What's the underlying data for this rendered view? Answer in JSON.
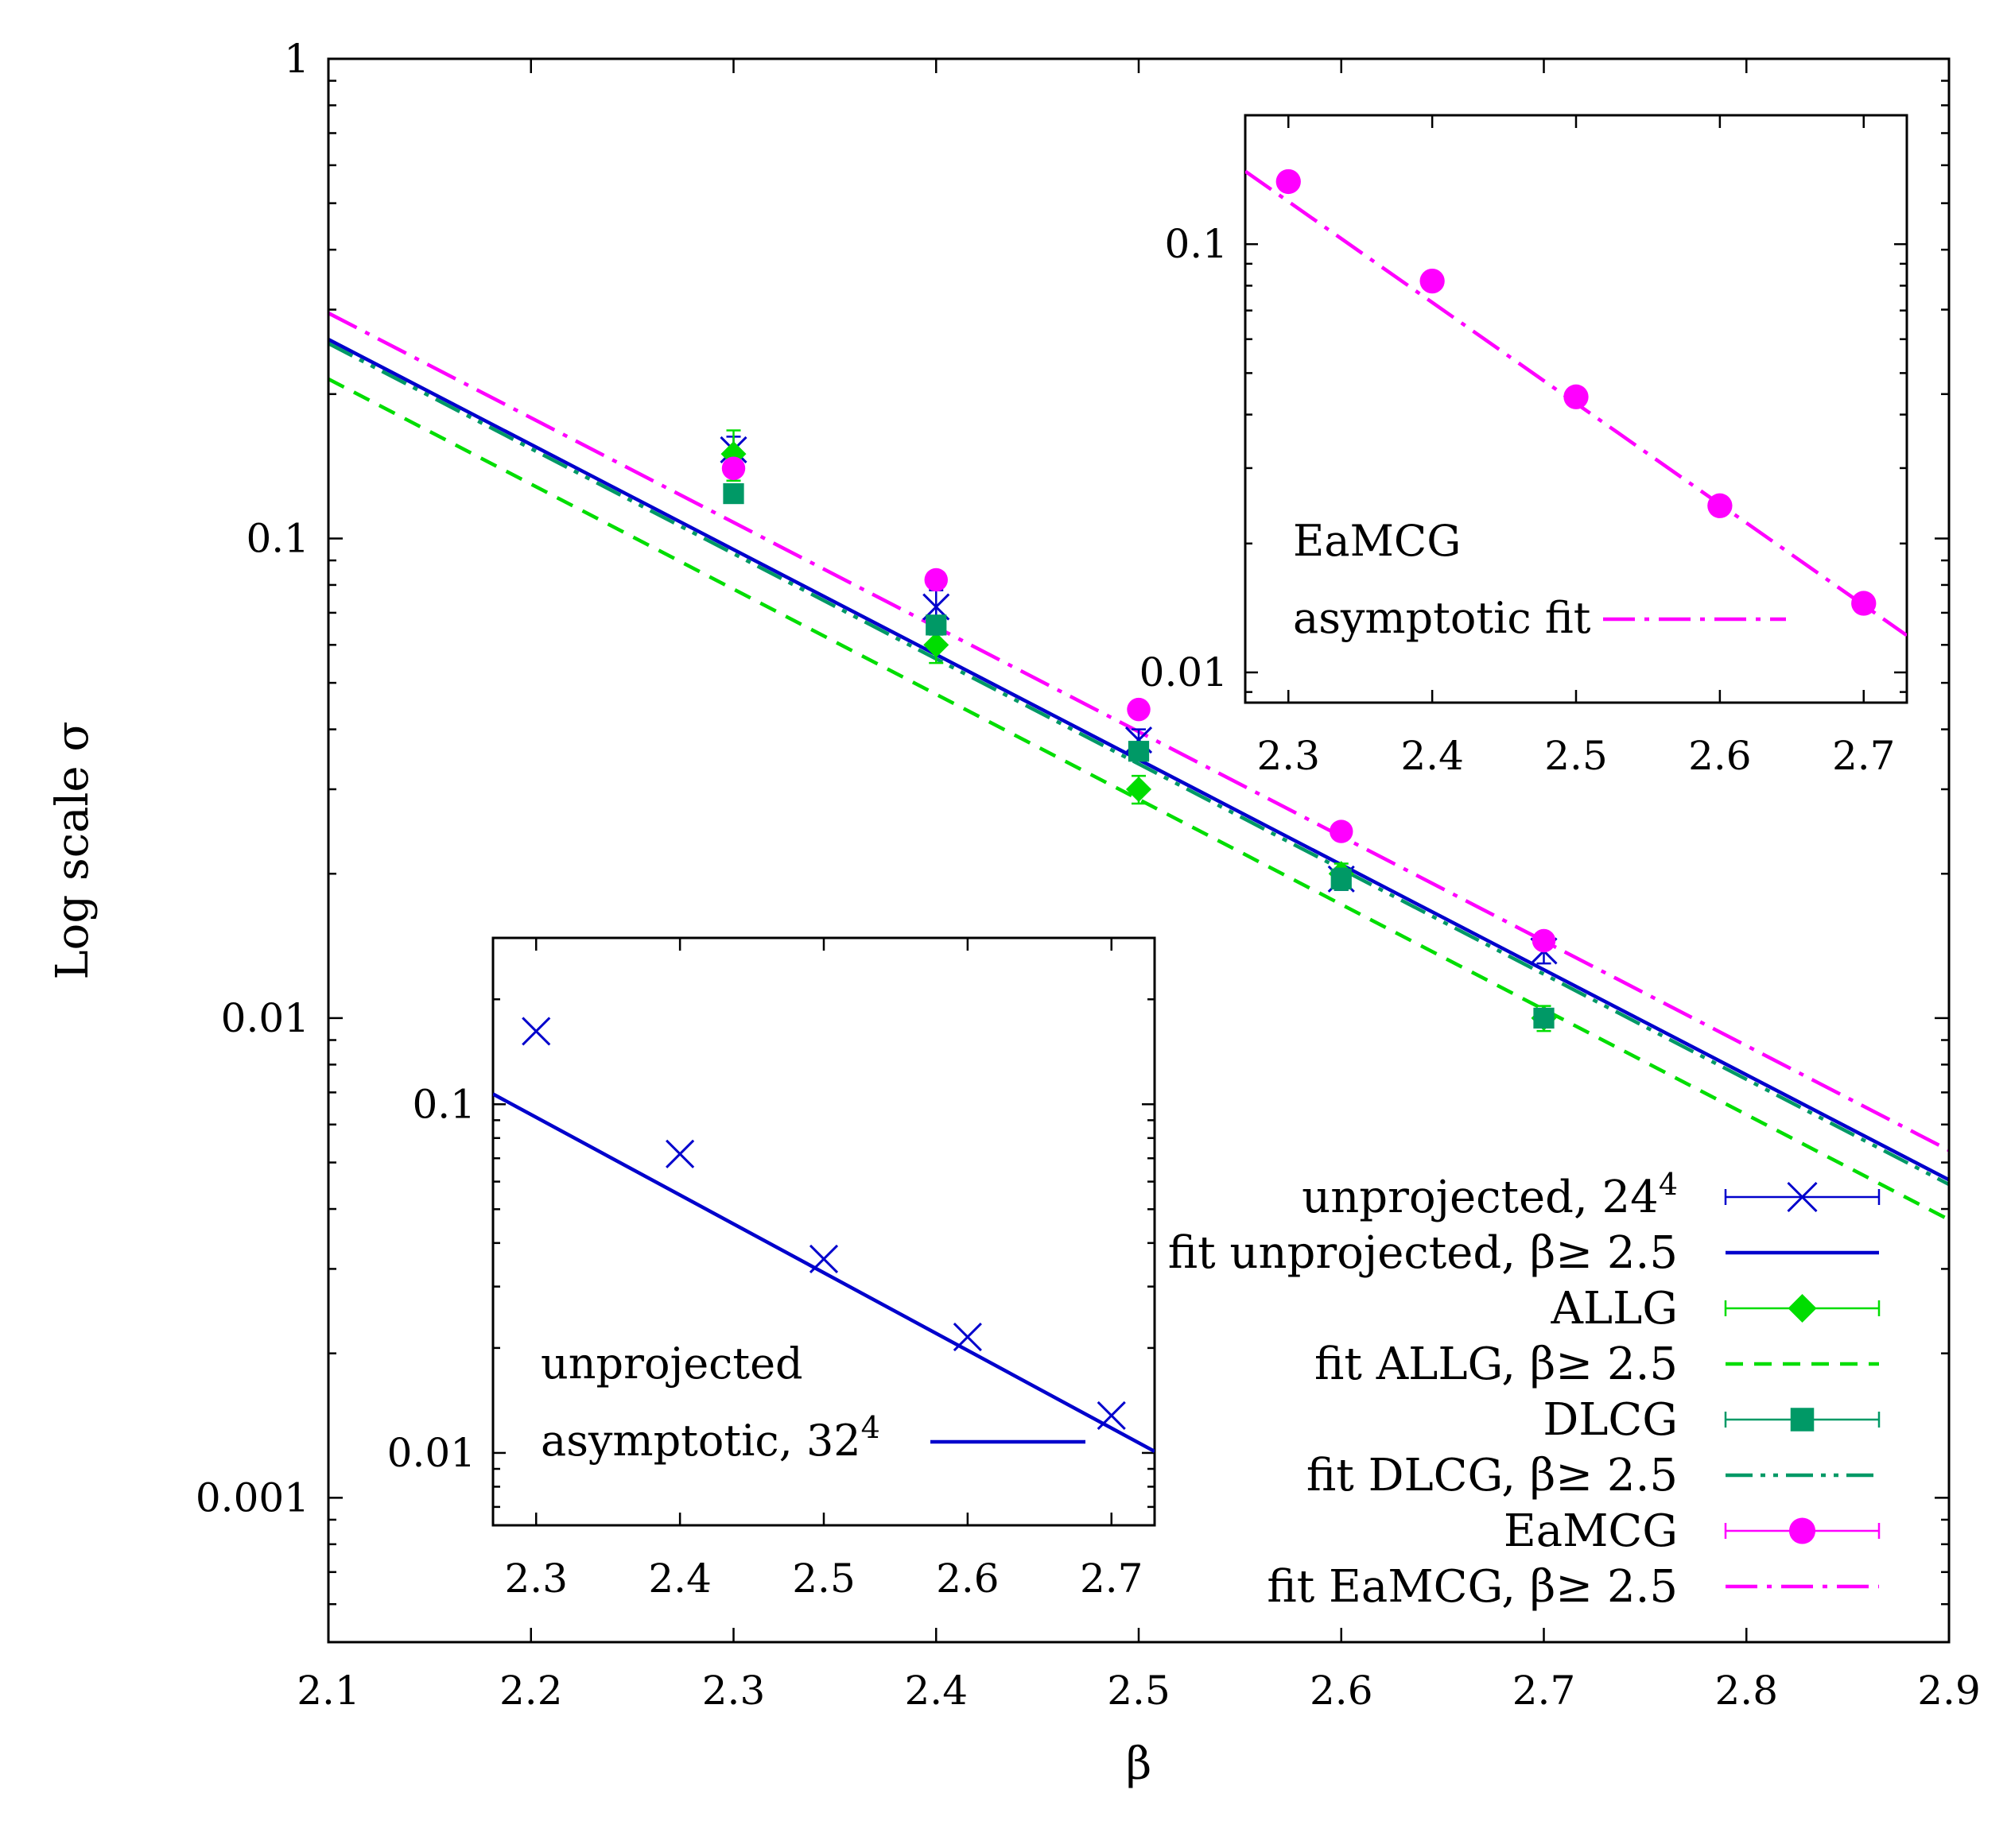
{
  "chart_data": {
    "type": "scatter",
    "title": "",
    "xlabel": "β",
    "ylabel": "Log scale σ",
    "yscale": "log",
    "xlim": [
      2.1,
      2.9
    ],
    "ylim": [
      0.0005,
      1
    ],
    "x_ticks": [
      2.1,
      2.2,
      2.3,
      2.4,
      2.5,
      2.6,
      2.7,
      2.8,
      2.9
    ],
    "x_tick_labels": [
      "2.1",
      "2.2",
      "2.3",
      "2.4",
      "2.5",
      "2.6",
      "2.7",
      "2.8",
      "2.9"
    ],
    "y_ticks": [
      0.001,
      0.01,
      0.1,
      1
    ],
    "y_tick_labels": [
      "0.001",
      "0.01",
      "0.1",
      "1"
    ],
    "legend_position": "bottom-right",
    "series": [
      {
        "name": "unprojected, 24",
        "name_sup": "4",
        "kind": "points",
        "marker": "x",
        "color": "#0000cc",
        "x": [
          2.3,
          2.4,
          2.5,
          2.6,
          2.7
        ],
        "y": [
          0.153,
          0.072,
          0.038,
          0.0195,
          0.0138
        ],
        "yerr": [
          0.01,
          0.006,
          0.002,
          0.001,
          0.0008
        ]
      },
      {
        "name": "fit unprojected, β≥ 2.5",
        "kind": "line",
        "dash": "",
        "color": "#0000cc",
        "x": [
          2.1,
          2.9
        ],
        "y": [
          0.26,
          0.0046
        ]
      },
      {
        "name": "ALLG",
        "kind": "points",
        "marker": "diamond",
        "color": "#00dd00",
        "x": [
          2.3,
          2.4,
          2.5,
          2.6,
          2.7
        ],
        "y": [
          0.15,
          0.06,
          0.03,
          0.02,
          0.01
        ],
        "yerr": [
          0.018,
          0.005,
          0.002,
          0.001,
          0.0006
        ]
      },
      {
        "name": "fit ALLG, β≥ 2.5",
        "kind": "line",
        "dash": "22,14",
        "color": "#00dd00",
        "x": [
          2.1,
          2.9
        ],
        "y": [
          0.215,
          0.0038
        ]
      },
      {
        "name": "DLCG",
        "kind": "points",
        "marker": "square",
        "color": "#009966",
        "x": [
          2.3,
          2.4,
          2.5,
          2.6,
          2.7
        ],
        "y": [
          0.124,
          0.066,
          0.036,
          0.0195,
          0.01
        ],
        "yerr": [
          0.004,
          0.003,
          0.001,
          0.001,
          0.0004
        ]
      },
      {
        "name": "fit DLCG, β≥ 2.5",
        "kind": "line",
        "dash": "34,10,6,10,6,10",
        "color": "#009966",
        "x": [
          2.1,
          2.9
        ],
        "y": [
          0.255,
          0.0045
        ]
      },
      {
        "name": "EaMCG",
        "kind": "points",
        "marker": "circle",
        "color": "#ff00ff",
        "x": [
          2.3,
          2.4,
          2.5,
          2.6,
          2.7
        ],
        "y": [
          0.14,
          0.082,
          0.044,
          0.0245,
          0.0145
        ],
        "yerr": [
          0.003,
          0.002,
          0.001,
          0.0005,
          0.0003
        ]
      },
      {
        "name": "fit EaMCG, β≥ 2.5",
        "kind": "line",
        "dash": "40,12,6,12",
        "color": "#ff00ff",
        "x": [
          2.1,
          2.9
        ],
        "y": [
          0.295,
          0.0053
        ]
      }
    ],
    "insets": [
      {
        "id": "eamcg",
        "color": "#ff00ff",
        "marker": "circle",
        "label_line1": "EaMCG",
        "label_line2": "asymptotic fit",
        "legend_position": "bottom-left",
        "xlim": [
          2.27,
          2.73
        ],
        "ylim": [
          0.0085,
          0.2
        ],
        "x_ticks": [
          2.3,
          2.4,
          2.5,
          2.6,
          2.7
        ],
        "x_tick_labels": [
          "2.3",
          "2.4",
          "2.5",
          "2.6",
          "2.7"
        ],
        "y_ticks": [
          0.01,
          0.1
        ],
        "y_tick_labels": [
          "0.01",
          "0.1"
        ],
        "points": {
          "x": [
            2.3,
            2.4,
            2.5,
            2.6,
            2.7
          ],
          "y": [
            0.14,
            0.082,
            0.044,
            0.0245,
            0.0145
          ]
        },
        "fit": {
          "x": [
            2.27,
            2.73
          ],
          "y": [
            0.148,
            0.0122
          ],
          "dash": "40,12,6,12"
        }
      },
      {
        "id": "unprojected32",
        "color": "#0000cc",
        "marker": "x",
        "label_line1": "unprojected",
        "label_line2": "asymptotic, 32",
        "label_sup": "4",
        "legend_position": "bottom-left",
        "xlim": [
          2.27,
          2.73
        ],
        "ylim": [
          0.0062,
          0.3
        ],
        "x_ticks": [
          2.3,
          2.4,
          2.5,
          2.6,
          2.7
        ],
        "x_tick_labels": [
          "2.3",
          "2.4",
          "2.5",
          "2.6",
          "2.7"
        ],
        "y_ticks": [
          0.01,
          0.1
        ],
        "y_tick_labels": [
          "0.01",
          "0.1"
        ],
        "points": {
          "x": [
            2.3,
            2.4,
            2.5,
            2.6,
            2.7
          ],
          "y": [
            0.162,
            0.072,
            0.036,
            0.0215,
            0.0128
          ]
        },
        "fit": {
          "x": [
            2.27,
            2.73
          ],
          "y": [
            0.107,
            0.0101
          ],
          "dash": ""
        }
      }
    ]
  }
}
